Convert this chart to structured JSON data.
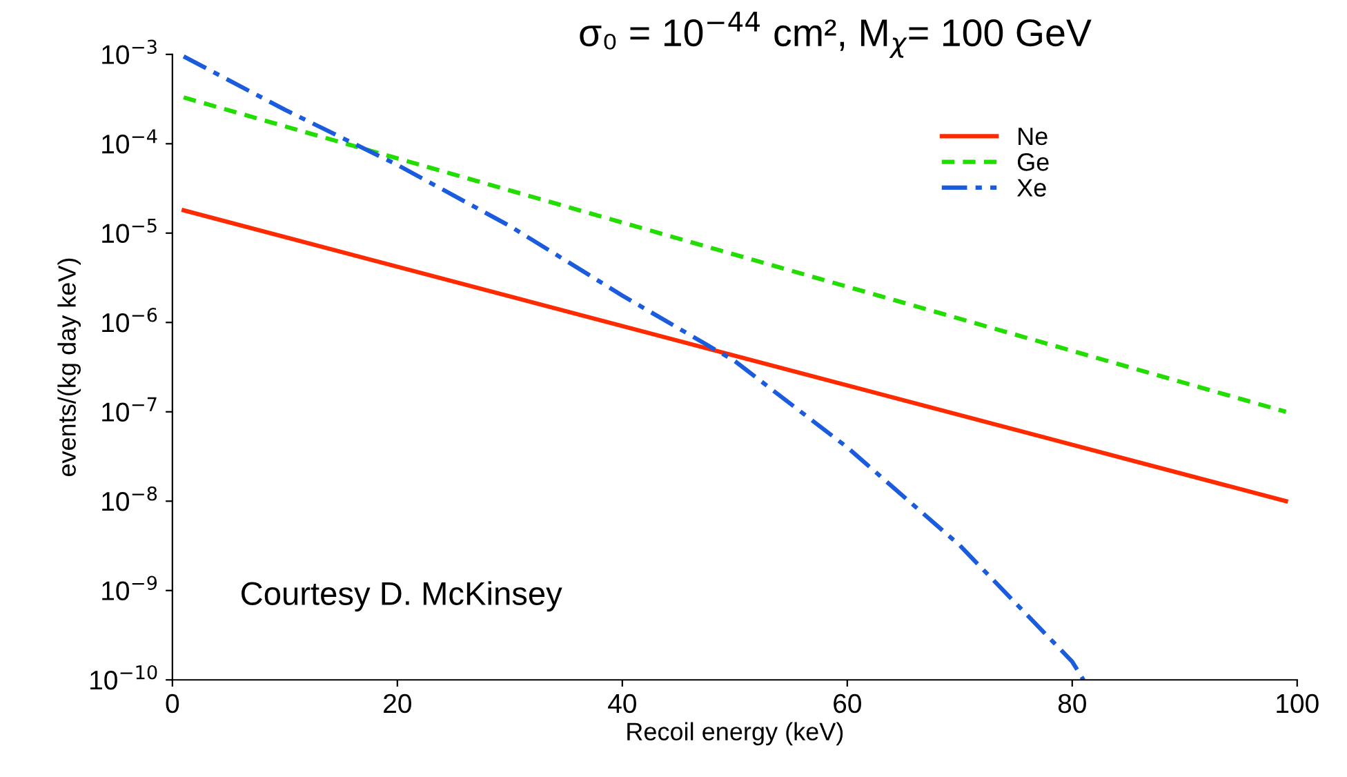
{
  "chart_data": {
    "type": "line",
    "title": "σ₀ = 10$^{−44}$ cm², M$_{χ}$= 100 GeV",
    "xlabel": "Recoil energy (keV)",
    "ylabel": "events/(kg day keV)",
    "log": "y",
    "grid": false,
    "legend": "top right",
    "xlim": [
      0,
      100
    ],
    "xticks": [
      0,
      20,
      40,
      60,
      80,
      100
    ],
    "ylim": [
      1e-10,
      0.001
    ],
    "yticks": [
      {
        "value": 1e-10,
        "label": "10$^{−10}$"
      },
      {
        "value": 1e-09,
        "label": "10$^{−9}$"
      },
      {
        "value": 1e-08,
        "label": "10$^{−8}$"
      },
      {
        "value": 1e-07,
        "label": "10$^{−7}$"
      },
      {
        "value": 1e-06,
        "label": "10$^{−6}$"
      },
      {
        "value": 1e-05,
        "label": "10$^{−5}$"
      },
      {
        "value": 0.0001,
        "label": "10$^{−4}$"
      },
      {
        "value": 0.001,
        "label": "10$^{−3}$"
      }
    ],
    "annotations": [
      "Courtesy D. McKinsey"
    ],
    "series": [
      {
        "name": "Ne",
        "color": "#ff2a00",
        "line_style": "solid",
        "x": [
          1,
          99
        ],
        "values": [
          1.8e-05,
          1e-08
        ]
      },
      {
        "name": "Ge",
        "color": "#22dd00",
        "line_style": "dashed",
        "x": [
          1,
          99
        ],
        "values": [
          0.00033,
          1e-07
        ]
      },
      {
        "name": "Xe",
        "color": "#1a5cdd",
        "line_style": "dashdot",
        "x": [
          1,
          10,
          20,
          30,
          40,
          50,
          60,
          70,
          80,
          81
        ],
        "values": [
          0.00095,
          0.00024,
          5.8e-05,
          1.2e-05,
          2e-06,
          3.7e-07,
          4e-08,
          3.2e-09,
          1.6e-10,
          1e-10
        ]
      }
    ]
  }
}
